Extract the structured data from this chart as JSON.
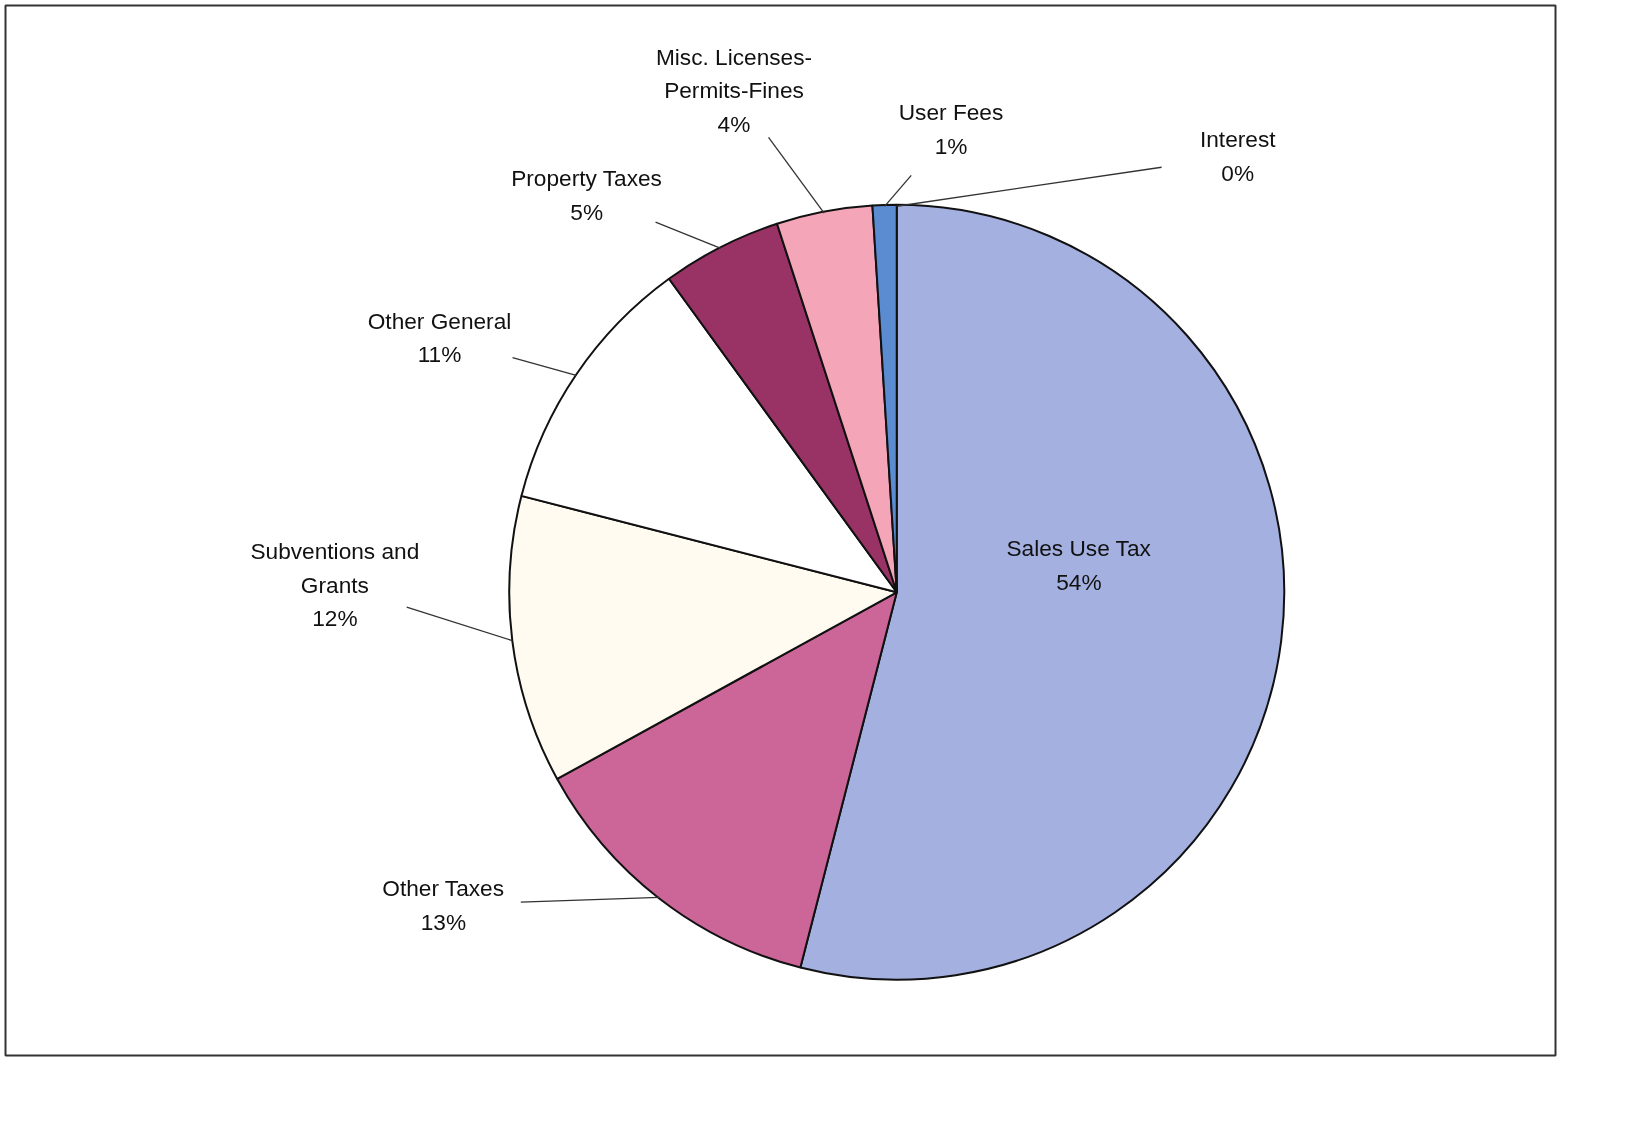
{
  "chart_data": {
    "type": "pie",
    "categories": [
      "Sales Use Tax",
      "Other Taxes",
      "Subventions and Grants",
      "Other General",
      "Property Taxes",
      "Misc. Licenses-Permits-Fines",
      "User Fees",
      "Interest"
    ],
    "values": [
      54,
      13,
      12,
      11,
      5,
      4,
      1,
      0
    ],
    "value_labels": [
      "54%",
      "13%",
      "12%",
      "11%",
      "5%",
      "4%",
      "1%",
      "0%"
    ],
    "colors": [
      "#a4b0e0",
      "#cc6699",
      "#fffbf0",
      "#ffffff",
      "#993366",
      "#f4a6b8",
      "#5b8bd0",
      "#d8dcf4"
    ]
  }
}
